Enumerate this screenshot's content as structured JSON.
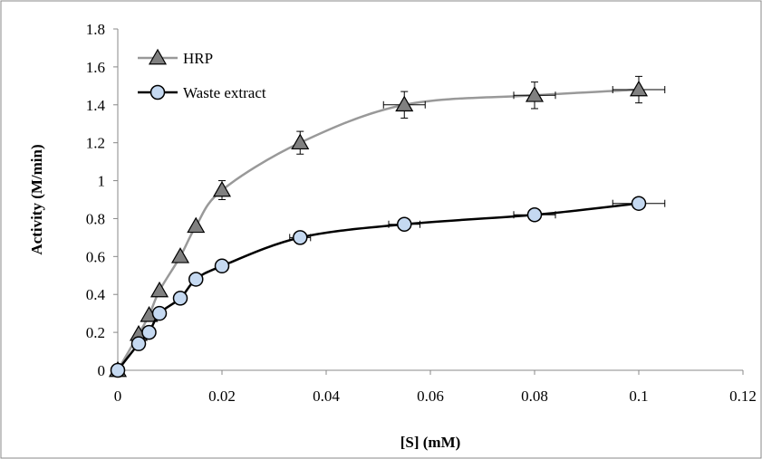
{
  "chart_data": {
    "type": "line",
    "title": "",
    "xlabel": "[S] (mM)",
    "ylabel": "Activity (M/min)",
    "xlim": [
      0,
      0.12
    ],
    "ylim": [
      0,
      1.8
    ],
    "xticks": [
      "0",
      "0.02",
      "0.04",
      "0.06",
      "0.08",
      "0.1",
      "0.12"
    ],
    "yticks": [
      "0",
      "0.2",
      "0.4",
      "0.6",
      "0.8",
      "1",
      "1.2",
      "1.4",
      "1.6",
      "1.8"
    ],
    "grid": false,
    "legend": "top-left",
    "series": [
      {
        "name": "HRP",
        "marker": "triangle",
        "line_color": "#999999",
        "marker_fill": "#808080",
        "points": [
          {
            "x": 0,
            "y": 0
          },
          {
            "x": 0.004,
            "y": 0.19
          },
          {
            "x": 0.006,
            "y": 0.29
          },
          {
            "x": 0.008,
            "y": 0.42
          },
          {
            "x": 0.012,
            "y": 0.6
          },
          {
            "x": 0.015,
            "y": 0.76
          },
          {
            "x": 0.02,
            "y": 0.95,
            "yerr": 0.05
          },
          {
            "x": 0.035,
            "y": 1.2,
            "yerr": 0.06
          },
          {
            "x": 0.055,
            "y": 1.4,
            "yerr": 0.07,
            "xerr": 0.004
          },
          {
            "x": 0.08,
            "y": 1.45,
            "yerr": 0.07,
            "xerr": 0.004
          },
          {
            "x": 0.1,
            "y": 1.48,
            "yerr": 0.07,
            "xerr": 0.005
          }
        ]
      },
      {
        "name": "Waste extract",
        "marker": "circle",
        "line_color": "#000000",
        "marker_fill": "#c5d9f1",
        "points": [
          {
            "x": 0,
            "y": 0
          },
          {
            "x": 0.004,
            "y": 0.14
          },
          {
            "x": 0.006,
            "y": 0.2
          },
          {
            "x": 0.008,
            "y": 0.3
          },
          {
            "x": 0.012,
            "y": 0.38
          },
          {
            "x": 0.015,
            "y": 0.48
          },
          {
            "x": 0.02,
            "y": 0.55
          },
          {
            "x": 0.035,
            "y": 0.7,
            "xerr": 0.002
          },
          {
            "x": 0.055,
            "y": 0.77,
            "xerr": 0.003
          },
          {
            "x": 0.08,
            "y": 0.82,
            "xerr": 0.004
          },
          {
            "x": 0.1,
            "y": 0.88,
            "yerr": 0.03,
            "xerr": 0.005
          }
        ]
      }
    ]
  }
}
